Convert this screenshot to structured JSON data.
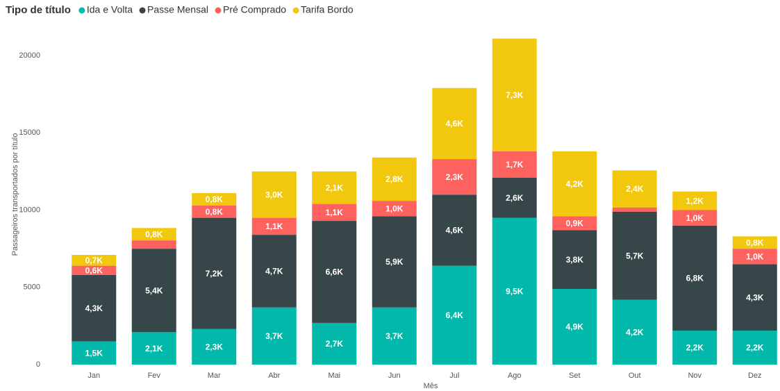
{
  "chart_data": {
    "type": "stacked_bar",
    "legend_title": "Tipo de título",
    "xlabel": "Mês",
    "ylabel": "Passageiros transportados por título",
    "categories": [
      "Jan",
      "Fev",
      "Mar",
      "Abr",
      "Mai",
      "Jun",
      "Jul",
      "Ago",
      "Set",
      "Out",
      "Nov",
      "Dez"
    ],
    "series": [
      {
        "name": "Ida e Volta",
        "color": "#01B8AA",
        "values": [
          1500,
          2100,
          2300,
          3700,
          2700,
          3700,
          6400,
          9500,
          4900,
          4200,
          2200,
          2200
        ],
        "value_labels": [
          "1,5K",
          "2,1K",
          "2,3K",
          "3,7K",
          "2,7K",
          "3,7K",
          "6,4K",
          "9,5K",
          "4,9K",
          "4,2K",
          "2,2K",
          "2,2K"
        ]
      },
      {
        "name": "Passe Mensal",
        "color": "#374649",
        "values": [
          4300,
          5400,
          7200,
          4700,
          6600,
          5900,
          4600,
          2600,
          3800,
          5700,
          6800,
          4300
        ],
        "value_labels": [
          "4,3K",
          "5,4K",
          "7,2K",
          "4,7K",
          "6,6K",
          "5,9K",
          "4,6K",
          "2,6K",
          "3,8K",
          "5,7K",
          "6,8K",
          "4,3K"
        ]
      },
      {
        "name": "Pré Comprado",
        "color": "#FD625E",
        "values": [
          600,
          540,
          800,
          1100,
          1100,
          1000,
          2300,
          1700,
          900,
          270,
          1000,
          1000
        ],
        "value_labels": [
          "0,6K",
          null,
          "0,8K",
          "1,1K",
          "1,1K",
          "1,0K",
          "2,3K",
          "1,7K",
          "0,9K",
          null,
          "1,0K",
          "1,0K"
        ]
      },
      {
        "name": "Tarifa Bordo",
        "color": "#F2C80F",
        "values": [
          700,
          800,
          800,
          3000,
          2100,
          2800,
          4600,
          7300,
          4200,
          2400,
          1200,
          800
        ],
        "value_labels": [
          "0,7K",
          "0,8K",
          "0,8K",
          "3,0K",
          "2,1K",
          "2,8K",
          "4,6K",
          "7,3K",
          "4,2K",
          "2,4K",
          "1,2K",
          "0,8K"
        ]
      }
    ],
    "ylim": [
      0,
      22000
    ],
    "yticks": [
      0,
      5000,
      10000,
      15000,
      20000
    ],
    "grid": false,
    "legend": "top-left"
  }
}
